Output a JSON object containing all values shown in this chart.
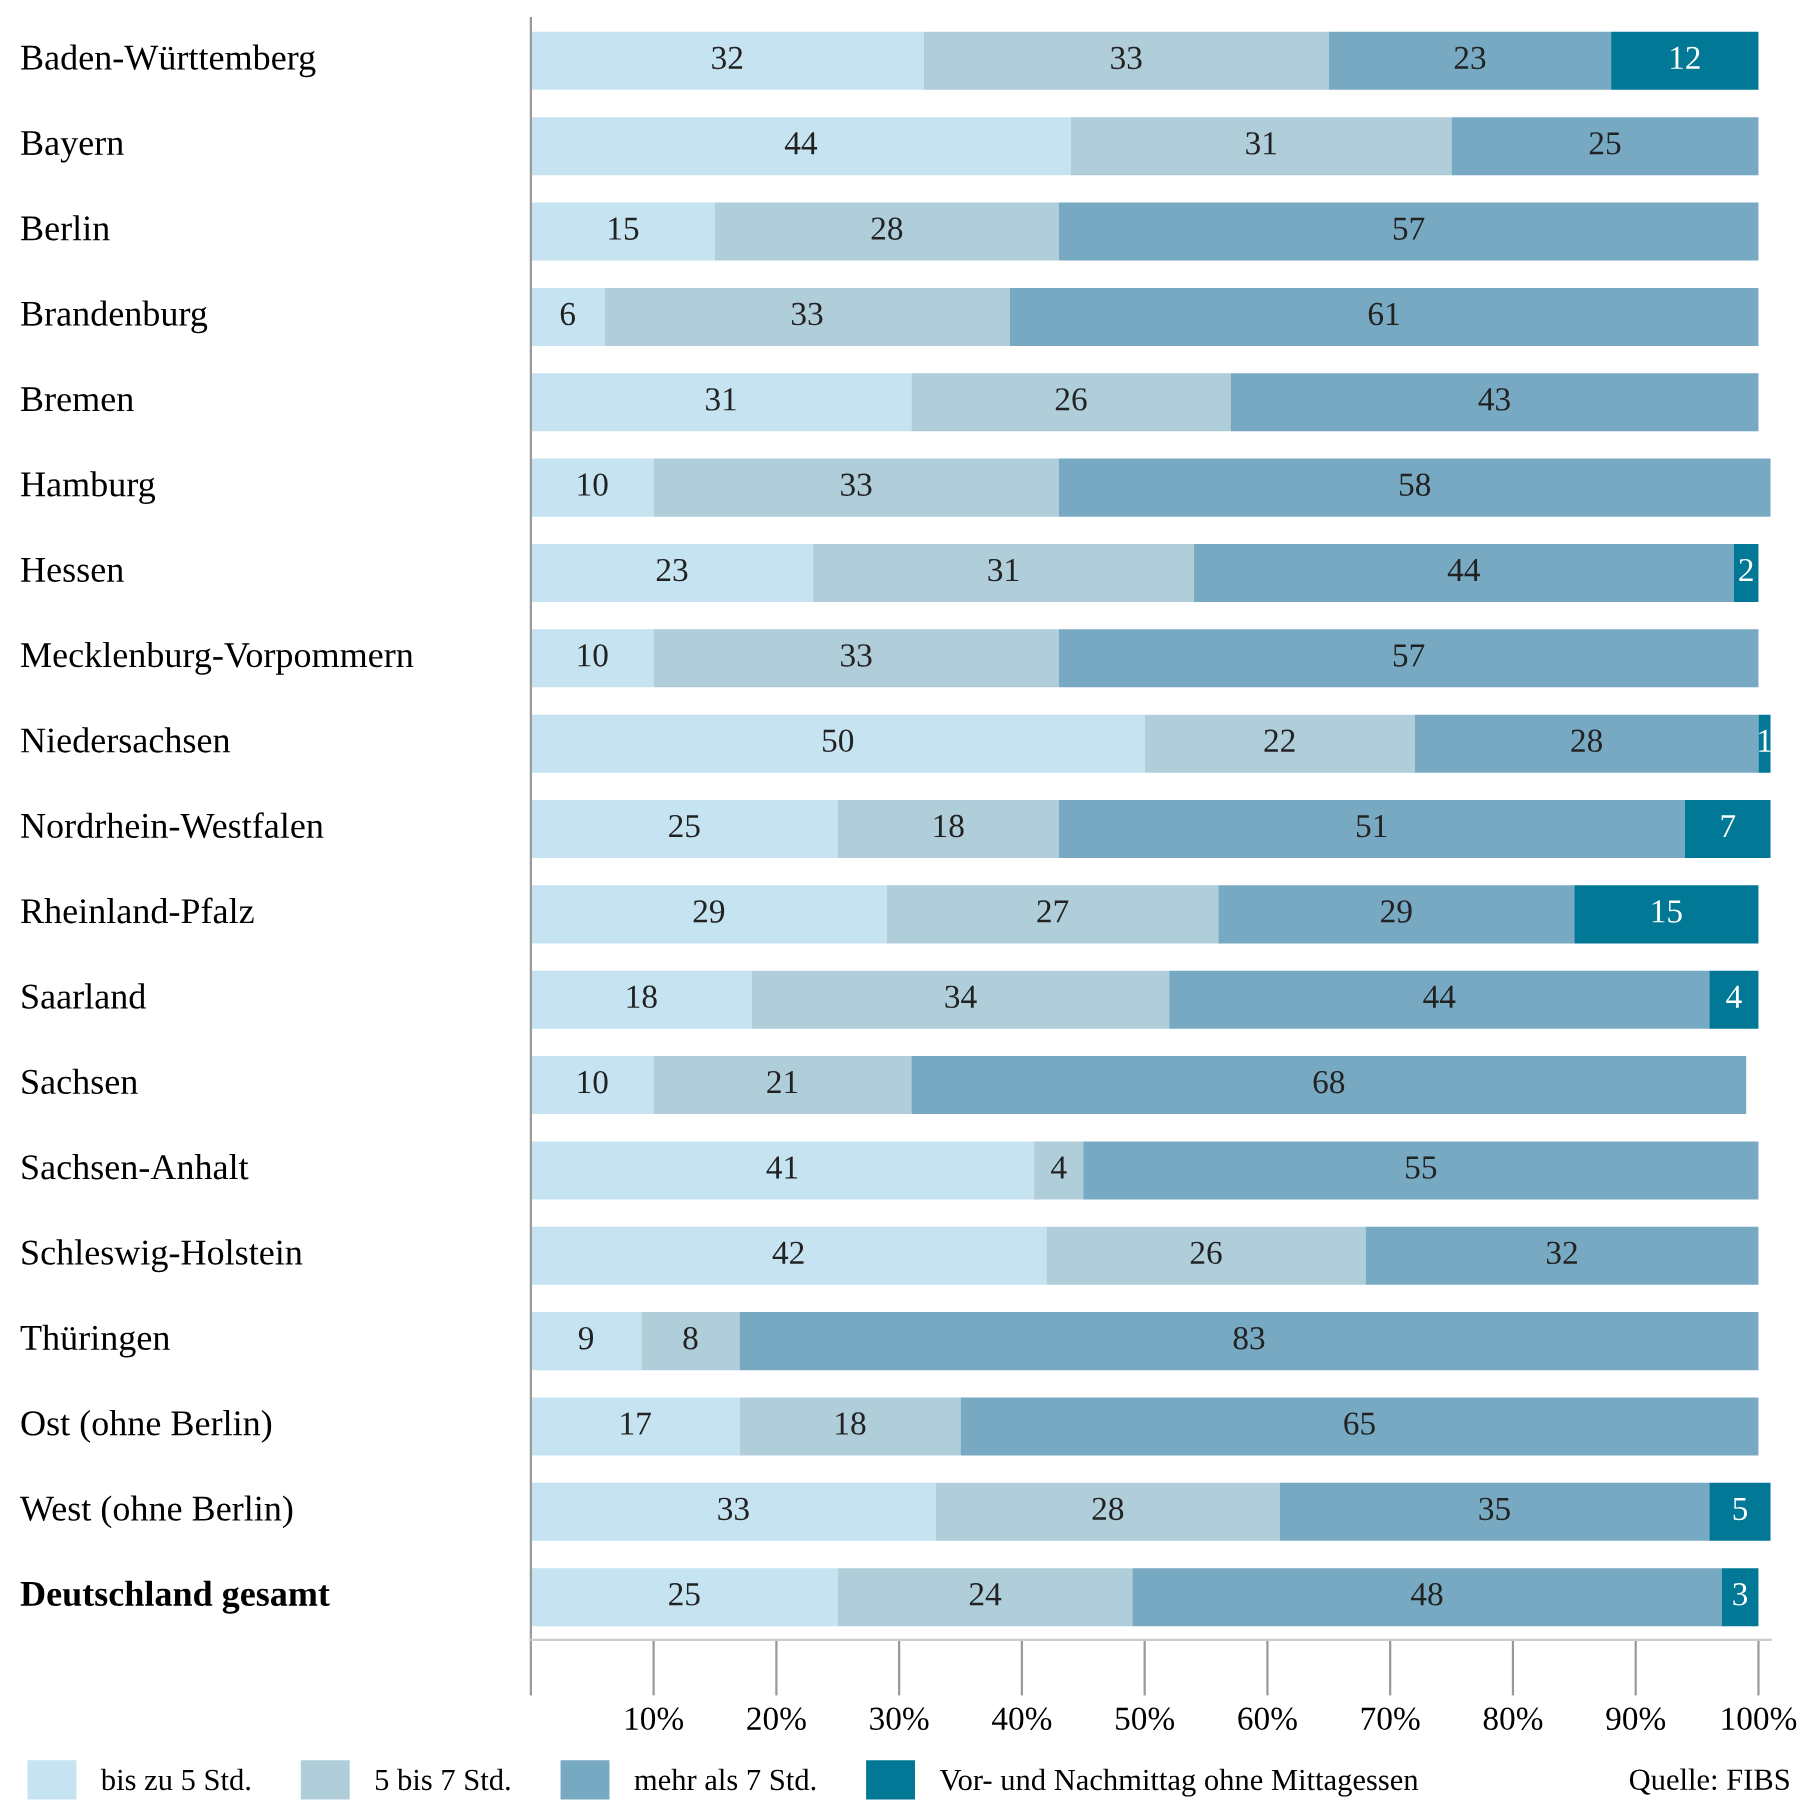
{
  "chart_data": {
    "type": "bar",
    "orientation": "horizontal",
    "stacked": true,
    "data_labels": true,
    "grid": false,
    "legend": "bottom",
    "categories": [
      "Baden-Württemberg",
      "Bayern",
      "Berlin",
      "Brandenburg",
      "Bremen",
      "Hamburg",
      "Hessen",
      "Mecklenburg-Vorpommern",
      "Niedersachsen",
      "Nordrhein-Westfalen",
      "Rheinland-Pfalz",
      "Saarland",
      "Sachsen",
      "Sachsen-Anhalt",
      "Schleswig-Holstein",
      "Thüringen",
      "Ost (ohne Berlin)",
      "West (ohne Berlin)",
      "Deutschland gesamt"
    ],
    "series": [
      {
        "name": "bis zu 5 Std.",
        "color": "#c5e3f0",
        "values": [
          32,
          44,
          15,
          6,
          31,
          10,
          23,
          10,
          50,
          25,
          29,
          18,
          10,
          41,
          42,
          9,
          17,
          33,
          25
        ]
      },
      {
        "name": "5 bis 7 Std.",
        "color": "#b0cdda",
        "values": [
          33,
          31,
          28,
          33,
          26,
          33,
          31,
          33,
          22,
          18,
          27,
          34,
          21,
          4,
          26,
          8,
          18,
          28,
          24
        ]
      },
      {
        "name": "mehr als 7 Std.",
        "color": "#77a9c2",
        "values": [
          23,
          25,
          57,
          61,
          43,
          58,
          44,
          57,
          28,
          51,
          29,
          44,
          68,
          55,
          32,
          83,
          65,
          35,
          48
        ]
      },
      {
        "name": "Vor- und Nachmittag ohne Mittagessen",
        "color": "#007896",
        "values": [
          12,
          null,
          null,
          null,
          null,
          null,
          2,
          null,
          1,
          7,
          15,
          4,
          null,
          null,
          null,
          null,
          null,
          5,
          3
        ]
      }
    ],
    "xlim": [
      0,
      101
    ],
    "xticks": [
      {
        "value": 0,
        "label": null
      },
      {
        "value": 10,
        "label": "10%"
      },
      {
        "value": 20,
        "label": "20%"
      },
      {
        "value": 30,
        "label": "30%"
      },
      {
        "value": 40,
        "label": "40%"
      },
      {
        "value": 50,
        "label": "50%"
      },
      {
        "value": 60,
        "label": "60%"
      },
      {
        "value": 70,
        "label": "70%"
      },
      {
        "value": 80,
        "label": "80%"
      },
      {
        "value": 90,
        "label": "90%"
      },
      {
        "value": 100,
        "label": "100%"
      }
    ],
    "annotations": [
      "Quelle: FIBS"
    ]
  }
}
